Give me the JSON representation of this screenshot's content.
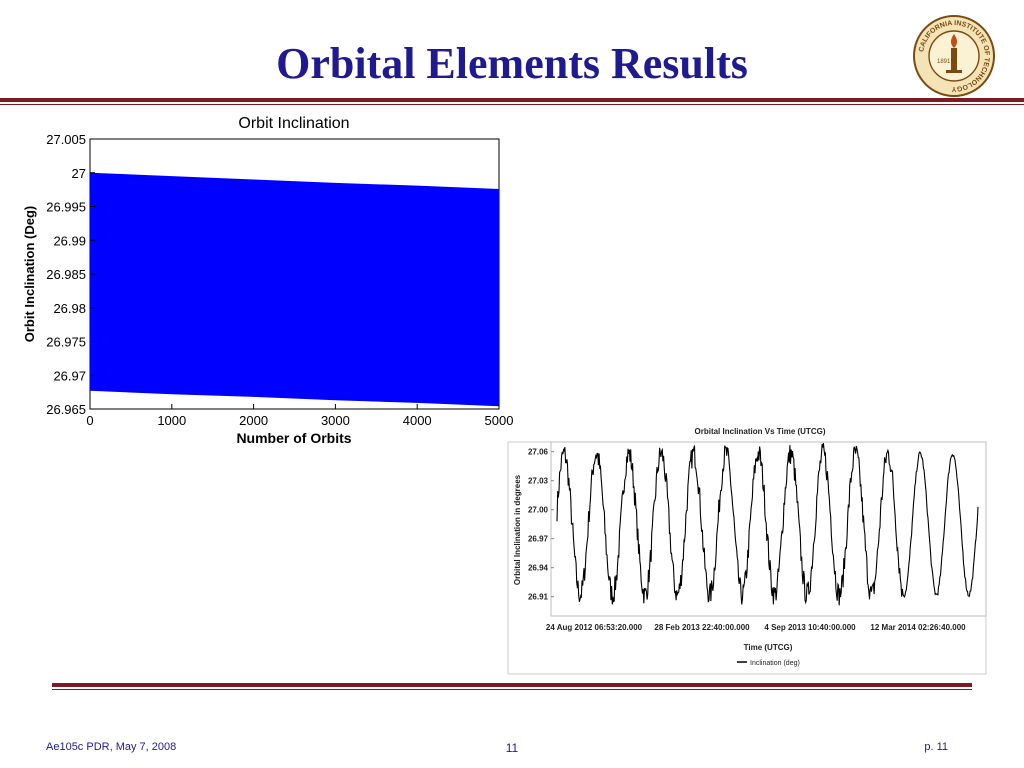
{
  "slide": {
    "title": "Orbital Elements Results",
    "footer_left": "Ae105c PDR, May 7, 2008",
    "footer_center": "11",
    "footer_right": "p. 11"
  },
  "logo": {
    "icon": "caltech-seal-icon",
    "ring_text": "CALIFORNIA INSTITUTE OF TECHNOLOGY",
    "year": "1891",
    "color": "#7a4a12"
  },
  "chart_data": [
    {
      "type": "area",
      "title": "Orbit Inclination",
      "xlabel": "Number of Orbits",
      "ylabel": "Orbit Inclination (Deg)",
      "xlim": [
        0,
        5000
      ],
      "ylim": [
        26.965,
        27.005
      ],
      "x_ticks": [
        "0",
        "1000",
        "2000",
        "3000",
        "4000",
        "5000"
      ],
      "y_ticks": [
        "27.005",
        "27",
        "26.995",
        "26.99",
        "26.985",
        "26.98",
        "26.975",
        "26.97",
        "26.965"
      ],
      "grid": false,
      "color": "#0000ff",
      "x": [
        0,
        1000,
        2000,
        3000,
        4000,
        5000
      ],
      "upper": [
        27.0,
        26.9995,
        26.999,
        26.9985,
        26.9981,
        26.9976
      ],
      "lower": [
        26.9677,
        26.9672,
        26.9668,
        26.9663,
        26.9659,
        26.9654
      ]
    },
    {
      "type": "line",
      "title": "Orbital Inclination Vs Time (UTCG)",
      "xlabel": "Time (UTCG)",
      "ylabel": "Orbital Inclination in degrees",
      "x_ticks": [
        "24 Aug 2012 06:53:20.000",
        "28 Feb 2013 22:40:00.000",
        "4 Sep 2013 10:40:00.000",
        "12 Mar 2014 02:26:40.000"
      ],
      "y_ticks": [
        "27.06",
        "27.03",
        "27.00",
        "26.97",
        "26.94",
        "26.91"
      ],
      "ylim": [
        26.89,
        27.07
      ],
      "grid": false,
      "legend": "bottom-center",
      "series": [
        {
          "name": "Inclination (deg)",
          "color": "#000000",
          "mean": 26.985,
          "amplitude": 0.073,
          "cycles": 13,
          "start_value": 27.0
        }
      ]
    }
  ]
}
